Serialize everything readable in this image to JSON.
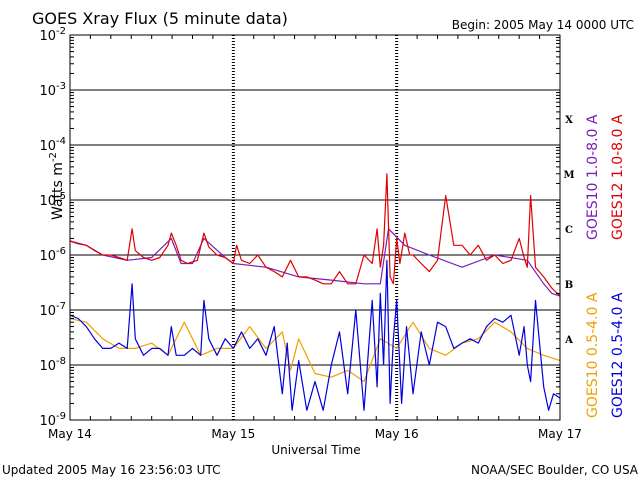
{
  "chart_data": {
    "type": "line",
    "title": "GOES Xray Flux (5 minute data)",
    "begin": "Begin:  2005 May 14 0000 UTC",
    "xlabel": "Universal Time",
    "ylabel": "Watts m",
    "ylabel_sup": "-2",
    "yscale": "log",
    "ylim": [
      1e-09,
      0.01
    ],
    "xlim": [
      0,
      3
    ],
    "y_ticks": [
      {
        "base": "10",
        "exp": "-9",
        "value": 1e-09
      },
      {
        "base": "10",
        "exp": "-8",
        "value": 1e-08
      },
      {
        "base": "10",
        "exp": "-7",
        "value": 1e-07
      },
      {
        "base": "10",
        "exp": "-6",
        "value": 1e-06
      },
      {
        "base": "10",
        "exp": "-5",
        "value": 1e-05
      },
      {
        "base": "10",
        "exp": "-4",
        "value": 0.0001
      },
      {
        "base": "10",
        "exp": "-3",
        "value": 0.001
      },
      {
        "base": "10",
        "exp": "-2",
        "value": 0.01
      }
    ],
    "x_ticks": [
      "May 14",
      "May 15",
      "May 16",
      "May 17"
    ],
    "flare_classes": [
      {
        "label": "A",
        "value": 3e-08
      },
      {
        "label": "B",
        "value": 3e-07
      },
      {
        "label": "C",
        "value": 3e-06
      },
      {
        "label": "M",
        "value": 3e-05
      },
      {
        "label": "X",
        "value": 0.0003
      }
    ],
    "legend_placement": "right",
    "series": [
      {
        "name": "GOES10 1.0-8.0 A",
        "color": "#7a1fb8",
        "x": [
          0,
          0.1,
          0.2,
          0.35,
          0.5,
          0.62,
          0.68,
          0.75,
          0.82,
          0.95,
          1.0,
          1.2,
          1.4,
          1.6,
          1.8,
          1.9,
          1.95,
          2.05,
          2.2,
          2.4,
          2.6,
          2.8,
          2.9,
          2.95,
          3.0
        ],
        "y": [
          1.8e-06,
          1.5e-06,
          1e-06,
          8e-07,
          9e-07,
          2e-06,
          7e-07,
          7e-07,
          2e-06,
          9e-07,
          7e-07,
          6e-07,
          4e-07,
          3.5e-07,
          3e-07,
          3e-07,
          3e-06,
          1.5e-06,
          1e-06,
          6e-07,
          1e-06,
          8e-07,
          3e-07,
          2e-07,
          1.8e-07
        ]
      },
      {
        "name": "GOES12 1.0-8.0 A",
        "color": "#e00000",
        "x": [
          0,
          0.05,
          0.1,
          0.15,
          0.2,
          0.25,
          0.3,
          0.35,
          0.38,
          0.4,
          0.45,
          0.5,
          0.55,
          0.6,
          0.62,
          0.65,
          0.68,
          0.72,
          0.78,
          0.82,
          0.85,
          0.9,
          0.95,
          1.0,
          1.02,
          1.05,
          1.1,
          1.15,
          1.2,
          1.25,
          1.3,
          1.35,
          1.4,
          1.45,
          1.5,
          1.55,
          1.6,
          1.65,
          1.7,
          1.75,
          1.8,
          1.85,
          1.88,
          1.9,
          1.92,
          1.94,
          1.96,
          1.98,
          2.0,
          2.02,
          2.05,
          2.08,
          2.1,
          2.15,
          2.2,
          2.25,
          2.3,
          2.35,
          2.4,
          2.45,
          2.5,
          2.55,
          2.6,
          2.65,
          2.7,
          2.75,
          2.78,
          2.8,
          2.82,
          2.85,
          2.9,
          2.95,
          3.0
        ],
        "y": [
          1.8e-06,
          1.6e-06,
          1.5e-06,
          1.2e-06,
          1e-06,
          1e-06,
          9e-07,
          8e-07,
          3e-06,
          1.2e-06,
          9e-07,
          8e-07,
          9e-07,
          1.5e-06,
          2.5e-06,
          1.5e-06,
          8e-07,
          7e-07,
          8e-07,
          2.5e-06,
          1.4e-06,
          1e-06,
          9e-07,
          7e-07,
          1.5e-06,
          8e-07,
          7e-07,
          1e-06,
          6e-07,
          5e-07,
          4e-07,
          8e-07,
          4e-07,
          4e-07,
          3.5e-07,
          3e-07,
          3e-07,
          5e-07,
          3e-07,
          3e-07,
          1e-06,
          7e-07,
          3e-06,
          6e-07,
          1.5e-06,
          3e-05,
          4e-07,
          3e-07,
          2e-06,
          7e-07,
          2.5e-06,
          1e-06,
          1e-06,
          7e-07,
          5e-07,
          8e-07,
          1.2e-05,
          1.5e-06,
          1.5e-06,
          1e-06,
          1.5e-06,
          8e-07,
          1e-06,
          7e-07,
          8e-07,
          2e-06,
          9e-07,
          6e-07,
          1.2e-05,
          6e-07,
          4e-07,
          2.5e-07,
          1.8e-07
        ]
      },
      {
        "name": "GOES10 0.5-4.0 A",
        "color": "#f0a000",
        "x": [
          0,
          0.1,
          0.2,
          0.3,
          0.4,
          0.5,
          0.6,
          0.7,
          0.8,
          0.9,
          1.0,
          1.1,
          1.2,
          1.3,
          1.35,
          1.4,
          1.5,
          1.6,
          1.7,
          1.8,
          1.9,
          2.0,
          2.1,
          2.2,
          2.3,
          2.4,
          2.5,
          2.6,
          2.7,
          2.8,
          2.9,
          3.0
        ],
        "y": [
          7e-08,
          6e-08,
          3e-08,
          2e-08,
          2e-08,
          2.5e-08,
          1.5e-08,
          6e-08,
          1.5e-08,
          2e-08,
          2e-08,
          5e-08,
          2e-08,
          4e-08,
          8e-09,
          3e-08,
          7e-09,
          6e-09,
          8e-09,
          5e-09,
          3e-08,
          2e-08,
          6e-08,
          2e-08,
          1.5e-08,
          2.5e-08,
          3e-08,
          6e-08,
          4e-08,
          2e-08,
          1.5e-08,
          1.2e-08
        ]
      },
      {
        "name": "GOES12 0.5-4.0 A",
        "color": "#0000e0",
        "x": [
          0,
          0.05,
          0.1,
          0.15,
          0.2,
          0.25,
          0.3,
          0.35,
          0.38,
          0.4,
          0.45,
          0.5,
          0.55,
          0.6,
          0.62,
          0.65,
          0.7,
          0.75,
          0.8,
          0.82,
          0.85,
          0.9,
          0.95,
          1.0,
          1.05,
          1.1,
          1.15,
          1.2,
          1.25,
          1.3,
          1.33,
          1.36,
          1.4,
          1.45,
          1.5,
          1.55,
          1.6,
          1.65,
          1.7,
          1.75,
          1.8,
          1.85,
          1.88,
          1.9,
          1.92,
          1.94,
          1.96,
          1.98,
          2.0,
          2.03,
          2.06,
          2.1,
          2.15,
          2.2,
          2.25,
          2.3,
          2.35,
          2.4,
          2.45,
          2.5,
          2.55,
          2.6,
          2.65,
          2.7,
          2.75,
          2.78,
          2.8,
          2.82,
          2.85,
          2.9,
          2.93,
          2.96,
          3.0
        ],
        "y": [
          8e-08,
          7e-08,
          5e-08,
          3e-08,
          2e-08,
          2e-08,
          2.5e-08,
          2e-08,
          3e-07,
          3e-08,
          1.5e-08,
          2e-08,
          2e-08,
          1.5e-08,
          5e-08,
          1.5e-08,
          1.5e-08,
          2e-08,
          1.5e-08,
          1.5e-07,
          3e-08,
          1.5e-08,
          3e-08,
          2e-08,
          4e-08,
          2e-08,
          3e-08,
          1.5e-08,
          5e-08,
          3e-09,
          2.5e-08,
          1.5e-09,
          1.2e-08,
          1.5e-09,
          5e-09,
          1.5e-09,
          1e-08,
          4e-08,
          3e-09,
          1e-07,
          1.5e-09,
          1.5e-07,
          4e-09,
          2e-07,
          1e-08,
          8e-07,
          2e-09,
          3e-08,
          1.5e-07,
          2e-09,
          5e-08,
          3e-09,
          4e-08,
          1e-08,
          6e-08,
          5e-08,
          2e-08,
          2.5e-08,
          3e-08,
          2.5e-08,
          5e-08,
          7e-08,
          6e-08,
          8e-08,
          1.5e-08,
          5e-08,
          1e-08,
          5e-09,
          1.5e-07,
          4e-09,
          1.5e-09,
          3e-09,
          2.5e-09
        ]
      }
    ]
  },
  "footer": {
    "updated": "Updated 2005 May 16 23:56:03 UTC",
    "source": "NOAA/SEC Boulder, CO USA"
  }
}
